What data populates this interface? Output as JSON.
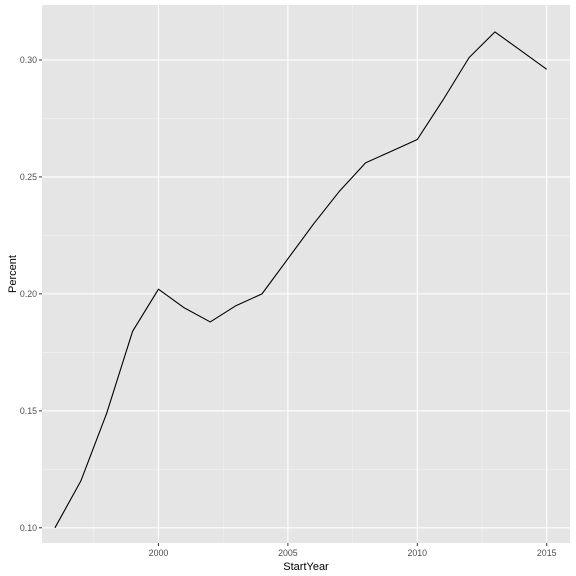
{
  "chart_data": {
    "type": "line",
    "title": "",
    "xlabel": "StartYear",
    "ylabel": "Percent",
    "xlim": [
      1995.5,
      2015.9
    ],
    "ylim": [
      0.0935,
      0.3235
    ],
    "x_ticks": [
      2000,
      2005,
      2010,
      2015
    ],
    "x_tick_labels": [
      "2000",
      "2005",
      "2010",
      "2015"
    ],
    "y_ticks": [
      0.1,
      0.15,
      0.2,
      0.25,
      0.3
    ],
    "y_tick_labels": [
      "0.10",
      "0.15",
      "0.20",
      "0.25",
      "0.30"
    ],
    "grid": true,
    "colors": {
      "panel_background": "#e5e5e5",
      "grid_major": "#ffffff",
      "grid_minor": "#f2f2f2",
      "line": "#000000",
      "tick_text": "#4d4d4d",
      "axis_title": "#000000"
    },
    "series": [
      {
        "x": [
          1996,
          1997,
          1998,
          1999,
          2000,
          2001,
          2002,
          2003,
          2004,
          2005,
          2006,
          2007,
          2008,
          2009,
          2010,
          2011,
          2012,
          2013,
          2014,
          2015
        ],
        "y": [
          0.1,
          0.12,
          0.149,
          0.184,
          0.202,
          0.194,
          0.188,
          0.195,
          0.2,
          0.215,
          0.23,
          0.244,
          0.256,
          0.261,
          0.266,
          0.283,
          0.301,
          0.312,
          0.304,
          0.296
        ]
      }
    ]
  }
}
